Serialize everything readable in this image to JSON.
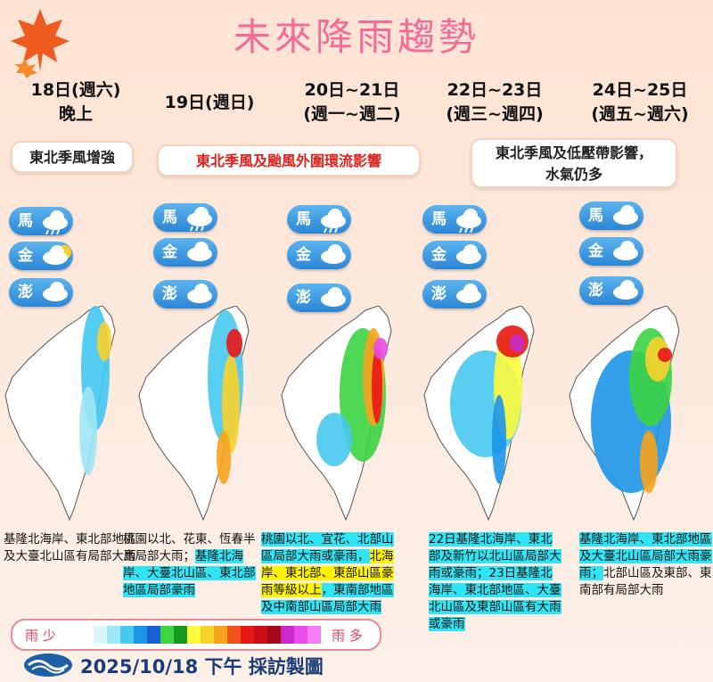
{
  "title": "未來降雨趨勢",
  "columns": [
    {
      "date": [
        "18日(週六)",
        "晚上"
      ],
      "islands": [
        {
          "label": "馬",
          "weather": "rain"
        },
        {
          "label": "金",
          "weather": "sun-cloud"
        },
        {
          "label": "澎",
          "weather": "cloud"
        }
      ],
      "description": [
        {
          "text": "基隆北海岸、東北部地區及大臺北山區有局部大雨",
          "highlight": "none"
        }
      ]
    },
    {
      "date": [
        "19日(週日)"
      ],
      "islands": [
        {
          "label": "馬",
          "weather": "rain"
        },
        {
          "label": "金",
          "weather": "cloud"
        },
        {
          "label": "澎",
          "weather": "cloud"
        }
      ],
      "description": [
        {
          "text": "桃園以北、花東、恆春半島局部大雨；",
          "highlight": "none"
        },
        {
          "text": "基隆北海岸、大臺北山區、東北部地區局部豪雨",
          "highlight": "cyan"
        }
      ]
    },
    {
      "date": [
        "20日~21日",
        "(週一~週二)"
      ],
      "islands": [
        {
          "label": "馬",
          "weather": "rain"
        },
        {
          "label": "金",
          "weather": "cloud"
        },
        {
          "label": "澎",
          "weather": "cloud"
        }
      ],
      "description": [
        {
          "text": "桃園以北、宜花、北部山區局部大雨或豪雨，",
          "highlight": "cyan"
        },
        {
          "text": "北海岸、東北部、東部山區豪雨等級以上",
          "highlight": "yellow"
        },
        {
          "text": "，東南部地區及中南部山區局部大雨",
          "highlight": "cyan"
        }
      ]
    },
    {
      "date": [
        "22日~23日",
        "(週三~週四)"
      ],
      "islands": [
        {
          "label": "馬",
          "weather": "rain"
        },
        {
          "label": "金",
          "weather": "cloud"
        },
        {
          "label": "澎",
          "weather": "cloud"
        }
      ],
      "description": [
        {
          "text": "22日基隆北海岸、東北部及新竹以北山區局部大雨或豪雨；23日基隆北海岸、東北部地區、大臺北山區及東部山區有大雨或豪雨",
          "highlight": "cyan"
        }
      ]
    },
    {
      "date": [
        "24日~25日",
        "(週五~週六)"
      ],
      "islands": [
        {
          "label": "馬",
          "weather": "cloud"
        },
        {
          "label": "金",
          "weather": "cloud"
        },
        {
          "label": "澎",
          "weather": "cloud"
        }
      ],
      "description": [
        {
          "text": "基隆北海岸、東北部地區及大臺北山區局部大雨豪雨；",
          "highlight": "cyan"
        },
        {
          "text": "北部山區及東部、東南部有局部大雨",
          "highlight": "none"
        }
      ]
    }
  ],
  "banners": [
    {
      "lines": [
        "東北季風增強"
      ],
      "color": "#222222"
    },
    {
      "lines": [
        "東北季風及颱風外圍環流影響"
      ],
      "color": "#e0201a"
    },
    {
      "lines": [
        "東北季風及低壓帶影響，",
        "水氣仍多"
      ],
      "color": "#222222"
    }
  ],
  "legend": {
    "low": "雨 少",
    "high": "雨 多"
  },
  "footer": "2025/10/18 下午 採訪製圖"
}
